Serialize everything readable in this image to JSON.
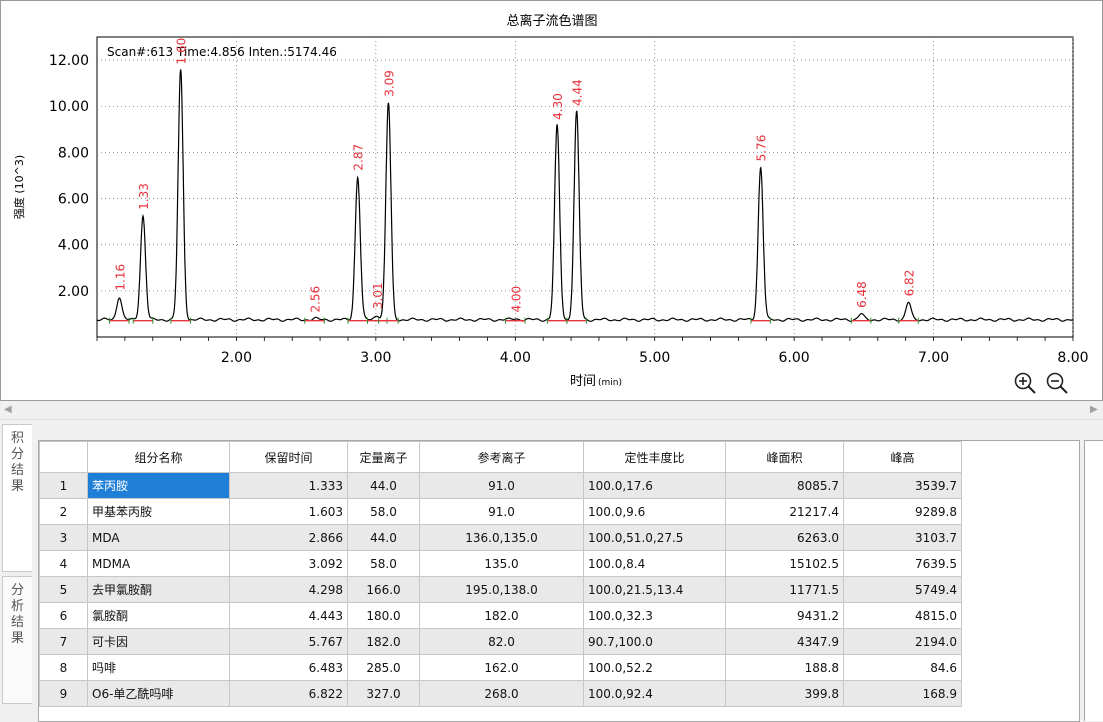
{
  "chart": {
    "title": "总离子流色谱图",
    "ylabel": "强度 (10^3)",
    "xlabel": "时间",
    "xlabel_unit": "(min)",
    "cursor_info": "Scan#:613  Time:4.856  Inten.:5174.46",
    "line_color": "#000000",
    "label_color": "#e8323c",
    "baseline_color": "#e8323c"
  },
  "chart_data": {
    "type": "line",
    "x_range": [
      1.0,
      8.0
    ],
    "y_range": [
      0.0,
      13.0
    ],
    "x_ticks": [
      "2.00",
      "3.00",
      "4.00",
      "5.00",
      "6.00",
      "7.00",
      "8.00"
    ],
    "y_ticks": [
      "2.00",
      "4.00",
      "6.00",
      "8.00",
      "10.00",
      "12.00"
    ],
    "grid": true,
    "baseline": 0.75,
    "peaks": [
      {
        "rt": 1.16,
        "label": "1.16",
        "height": 1.0
      },
      {
        "rt": 1.33,
        "label": "1.33",
        "height": 4.5
      },
      {
        "rt": 1.6,
        "label": "1.60",
        "height": 10.8
      },
      {
        "rt": 2.56,
        "label": "2.56",
        "height": 0.05
      },
      {
        "rt": 2.87,
        "label": "2.87",
        "height": 6.2
      },
      {
        "rt": 3.01,
        "label": "3.01",
        "height": 0.2
      },
      {
        "rt": 3.09,
        "label": "3.09",
        "height": 9.4
      },
      {
        "rt": 4.0,
        "label": "4.00",
        "height": 0.05
      },
      {
        "rt": 4.3,
        "label": "4.30",
        "height": 8.4
      },
      {
        "rt": 4.44,
        "label": "4.44",
        "height": 9.0
      },
      {
        "rt": 5.76,
        "label": "5.76",
        "height": 6.6
      },
      {
        "rt": 6.48,
        "label": "6.48",
        "height": 0.25
      },
      {
        "rt": 6.82,
        "label": "6.82",
        "height": 0.75
      }
    ]
  },
  "zoom": {
    "in_icon": "zoom-in-icon",
    "out_icon": "zoom-out-icon"
  },
  "side_tabs": [
    {
      "label": "积分结果"
    },
    {
      "label": "分析结果"
    }
  ],
  "table": {
    "headers": [
      "",
      "组分名称",
      "保留时间",
      "定量离子",
      "参考离子",
      "定性丰度比",
      "峰面积",
      "峰高"
    ],
    "rows": [
      [
        "1",
        "苯丙胺",
        "1.333",
        "44.0",
        "91.0",
        "100.0,17.6",
        "8085.7",
        "3539.7"
      ],
      [
        "2",
        "甲基苯丙胺",
        "1.603",
        "58.0",
        "91.0",
        "100.0,9.6",
        "21217.4",
        "9289.8"
      ],
      [
        "3",
        "MDA",
        "2.866",
        "44.0",
        "136.0,135.0",
        "100.0,51.0,27.5",
        "6263.0",
        "3103.7"
      ],
      [
        "4",
        "MDMA",
        "3.092",
        "58.0",
        "135.0",
        "100.0,8.4",
        "15102.5",
        "7639.5"
      ],
      [
        "5",
        "去甲氯胺酮",
        "4.298",
        "166.0",
        "195.0,138.0",
        "100.0,21.5,13.4",
        "11771.5",
        "5749.4"
      ],
      [
        "6",
        "氯胺酮",
        "4.443",
        "180.0",
        "182.0",
        "100.0,32.3",
        "9431.2",
        "4815.0"
      ],
      [
        "7",
        "可卡因",
        "5.767",
        "182.0",
        "82.0",
        "90.7,100.0",
        "4347.9",
        "2194.0"
      ],
      [
        "8",
        "吗啡",
        "6.483",
        "285.0",
        "162.0",
        "100.0,52.2",
        "188.8",
        "84.6"
      ],
      [
        "9",
        "O6-单乙酰吗啡",
        "6.822",
        "327.0",
        "268.0",
        "100.0,92.4",
        "399.8",
        "168.9"
      ]
    ]
  }
}
